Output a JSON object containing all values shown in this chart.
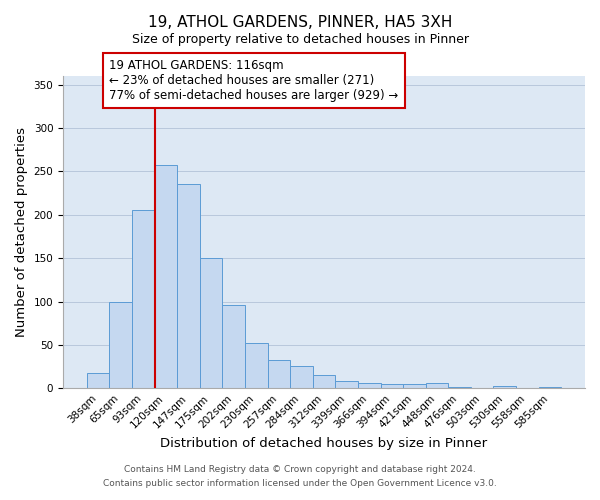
{
  "title": "19, ATHOL GARDENS, PINNER, HA5 3XH",
  "subtitle": "Size of property relative to detached houses in Pinner",
  "xlabel": "Distribution of detached houses by size in Pinner",
  "ylabel": "Number of detached properties",
  "bar_labels": [
    "38sqm",
    "65sqm",
    "93sqm",
    "120sqm",
    "147sqm",
    "175sqm",
    "202sqm",
    "230sqm",
    "257sqm",
    "284sqm",
    "312sqm",
    "339sqm",
    "366sqm",
    "394sqm",
    "421sqm",
    "448sqm",
    "476sqm",
    "503sqm",
    "530sqm",
    "558sqm",
    "585sqm"
  ],
  "bar_heights": [
    18,
    100,
    205,
    257,
    236,
    150,
    96,
    52,
    33,
    26,
    15,
    9,
    6,
    5,
    5,
    6,
    2,
    0,
    3,
    0,
    2
  ],
  "bar_color": "#c5d8f0",
  "bar_edge_color": "#5b9bd5",
  "vline_x": 3.0,
  "vline_color": "#cc0000",
  "annotation_title": "19 ATHOL GARDENS: 116sqm",
  "annotation_line1": "← 23% of detached houses are smaller (271)",
  "annotation_line2": "77% of semi-detached houses are larger (929) →",
  "annotation_box_color": "#cc0000",
  "annotation_bg": "#ffffff",
  "ylim": [
    0,
    360
  ],
  "yticks": [
    0,
    50,
    100,
    150,
    200,
    250,
    300,
    350
  ],
  "footer1": "Contains HM Land Registry data © Crown copyright and database right 2024.",
  "footer2": "Contains public sector information licensed under the Open Government Licence v3.0.",
  "title_fontsize": 11,
  "axis_label_fontsize": 9.5,
  "tick_fontsize": 7.5,
  "annotation_fontsize": 8.5,
  "footer_fontsize": 6.5
}
